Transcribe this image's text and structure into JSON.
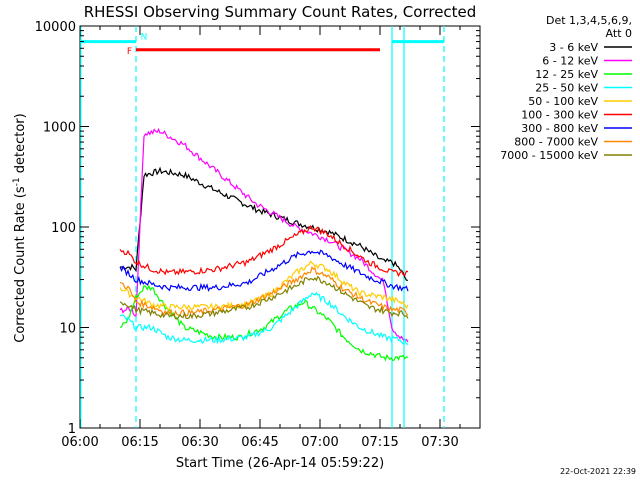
{
  "chart_data": {
    "type": "line",
    "title": "RHESSI Observing Summary Count Rates, Corrected",
    "xlabel": "Start Time (26-Apr-14 05:59:22)",
    "ylabel_prefix": "Corrected Count Rate (s",
    "ylabel_sup": "-1",
    "ylabel_suffix": " detector",
    "ylabel_close": ")",
    "xlim_min": [
      0,
      100
    ],
    "ylim": [
      1,
      10000
    ],
    "yscale": "log",
    "x_ticks": [
      {
        "min": 0,
        "label": "06:00"
      },
      {
        "min": 15,
        "label": "06:15"
      },
      {
        "min": 30,
        "label": "06:30"
      },
      {
        "min": 45,
        "label": "06:45"
      },
      {
        "min": 60,
        "label": "07:00"
      },
      {
        "min": 75,
        "label": "07:15"
      },
      {
        "min": 90,
        "label": "07:30"
      }
    ],
    "y_ticks": [
      {
        "v": 1,
        "label": "1"
      },
      {
        "v": 10,
        "label": "10"
      },
      {
        "v": 100,
        "label": "100"
      },
      {
        "v": 1000,
        "label": "1000"
      },
      {
        "v": 10000,
        "label": "10000"
      }
    ],
    "legend_header": [
      "Det 1,3,4,5,6,9,",
      "Att 0"
    ],
    "legend_position": "right",
    "series": [
      {
        "name": "3 - 6 keV",
        "color": "#000000",
        "x": [
          10,
          13,
          14,
          16,
          20,
          26,
          34,
          44,
          54,
          62,
          70,
          76,
          78,
          80,
          82
        ],
        "y": [
          40,
          40,
          38,
          330,
          360,
          330,
          230,
          150,
          110,
          90,
          65,
          45,
          45,
          38,
          28
        ]
      },
      {
        "name": "6 - 12 keV",
        "color": "#ff00ff",
        "x": [
          10,
          13,
          14,
          16,
          20,
          26,
          34,
          44,
          54,
          62,
          70,
          76,
          78,
          80,
          82
        ],
        "y": [
          15,
          15,
          13,
          850,
          900,
          660,
          360,
          170,
          100,
          75,
          48,
          28,
          10,
          8,
          7
        ]
      },
      {
        "name": "12 - 25 keV",
        "color": "#00ff00",
        "x": [
          10,
          12,
          14,
          16,
          18,
          21,
          26,
          34,
          40,
          46,
          52,
          56,
          62,
          66,
          70,
          76,
          80,
          82
        ],
        "y": [
          10,
          12,
          20,
          25,
          25,
          17,
          10,
          8,
          8,
          10,
          15,
          18,
          12,
          8,
          6,
          5,
          5,
          5
        ]
      },
      {
        "name": "25 - 50 keV",
        "color": "#00ffff",
        "x": [
          10,
          12,
          14,
          18,
          22,
          26,
          34,
          42,
          48,
          54,
          58,
          62,
          66,
          70,
          76,
          80,
          82
        ],
        "y": [
          13,
          12,
          10,
          10,
          8,
          7.5,
          7.5,
          8,
          10,
          16,
          22,
          18,
          13,
          10,
          8,
          7.5,
          7
        ]
      },
      {
        "name": "50 - 100 keV",
        "color": "#ffcc00",
        "x": [
          10,
          12,
          14,
          18,
          22,
          26,
          34,
          42,
          48,
          54,
          58,
          62,
          66,
          70,
          76,
          80,
          82
        ],
        "y": [
          25,
          22,
          20,
          17,
          16,
          16,
          16,
          17,
          22,
          35,
          44,
          38,
          28,
          22,
          20,
          18,
          16
        ]
      },
      {
        "name": "100 - 300 keV",
        "color": "#ff0000",
        "x": [
          10,
          12,
          14,
          18,
          22,
          28,
          34,
          42,
          48,
          54,
          58,
          62,
          66,
          72,
          78,
          80,
          82
        ],
        "y": [
          60,
          55,
          45,
          38,
          35,
          36,
          38,
          45,
          60,
          82,
          100,
          85,
          65,
          45,
          35,
          35,
          35
        ]
      },
      {
        "name": "300 - 800 keV",
        "color": "#0000ff",
        "x": [
          10,
          12,
          14,
          18,
          22,
          28,
          34,
          42,
          48,
          54,
          58,
          62,
          66,
          72,
          78,
          80,
          82
        ],
        "y": [
          40,
          35,
          30,
          27,
          25,
          25,
          25,
          28,
          38,
          52,
          58,
          52,
          42,
          32,
          26,
          25,
          24
        ]
      },
      {
        "name": "800 - 7000 keV",
        "color": "#ff8800",
        "x": [
          10,
          12,
          14,
          18,
          22,
          28,
          34,
          42,
          48,
          54,
          58,
          62,
          66,
          72,
          78,
          80,
          82
        ],
        "y": [
          28,
          25,
          18,
          16,
          14,
          14,
          15,
          17,
          22,
          30,
          38,
          32,
          24,
          18,
          15,
          15,
          14
        ]
      },
      {
        "name": "7000 - 15000 keV",
        "color": "#808000",
        "x": [
          10,
          12,
          14,
          18,
          22,
          28,
          34,
          42,
          48,
          54,
          58,
          62,
          66,
          72,
          78,
          80,
          82
        ],
        "y": [
          18,
          17,
          15,
          14,
          13,
          13,
          14,
          16,
          20,
          26,
          32,
          28,
          22,
          16,
          14,
          14,
          13
        ]
      }
    ],
    "attenuator_bars": {
      "color": "#00ffff",
      "segments": [
        [
          0,
          14
        ],
        [
          78,
          91
        ]
      ],
      "level": 7000
    },
    "flare_bar": {
      "label": "F",
      "color": "#ff0000",
      "start": 14,
      "end": 75,
      "level": 5800
    },
    "night_label": "N",
    "vlines": [
      {
        "min": 0.2,
        "style": "solid"
      },
      {
        "min": 14,
        "style": "dashed"
      },
      {
        "min": 78,
        "style": "solid"
      },
      {
        "min": 81,
        "style": "solid"
      },
      {
        "min": 91,
        "style": "dashed"
      }
    ],
    "timestamp": "22-Oct-2021 22:39"
  }
}
